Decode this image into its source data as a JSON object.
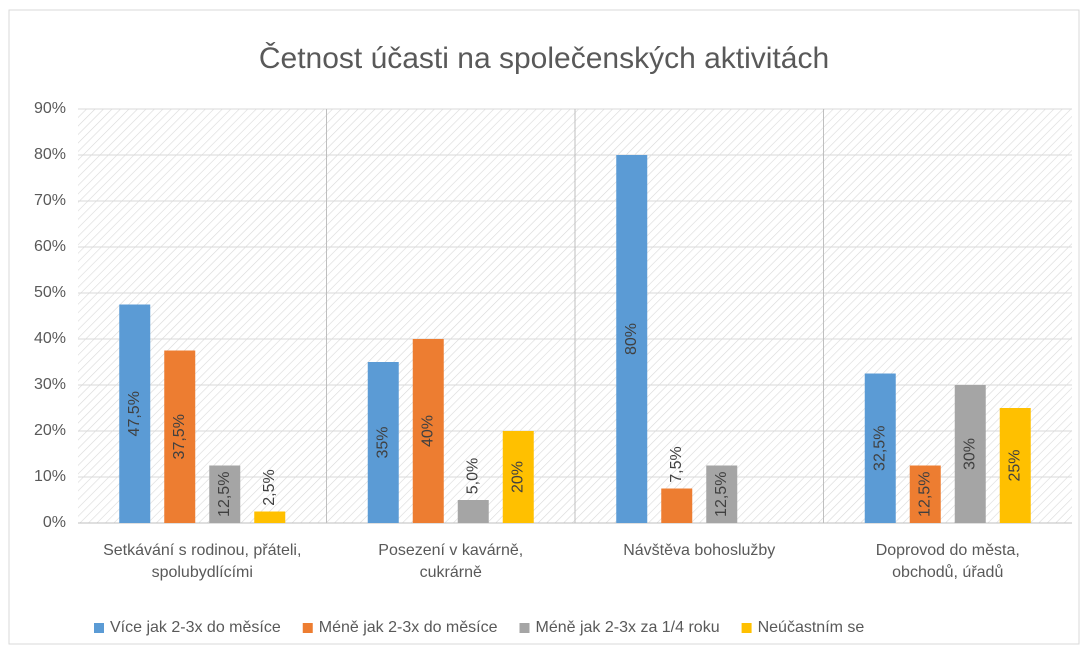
{
  "chart_data": {
    "type": "bar",
    "title": "Četnost účasti na společenských aktivitách",
    "categories": [
      "Setkávání s rodinou, přáteli,\nspolubydlícími",
      "Posezení v kavárně,\ncukrárně",
      "Návštěva bohoslužby",
      "Doprovod do města,\nobchodů, úřadů"
    ],
    "series": [
      {
        "name": "Více jak 2-3x do měsíce",
        "color": "#5b9bd5",
        "values": [
          47.5,
          35,
          80,
          32.5
        ],
        "value_labels": [
          "47,5%",
          "35%",
          "80%",
          "32,5%"
        ]
      },
      {
        "name": "Méně jak 2-3x do měsíce",
        "color": "#ed7d31",
        "values": [
          37.5,
          40,
          7.5,
          12.5
        ],
        "value_labels": [
          "37,5%",
          "40%",
          "7,5%",
          "12,5%"
        ]
      },
      {
        "name": "Méně jak 2-3x za 1/4 roku",
        "color": "#a5a5a5",
        "values": [
          12.5,
          5,
          12.5,
          30
        ],
        "value_labels": [
          "12,5%",
          "5,0%",
          "12,5%",
          "30%"
        ]
      },
      {
        "name": "Neúčastním se",
        "color": "#ffc000",
        "values": [
          2.5,
          20,
          null,
          25
        ],
        "value_labels": [
          "2,5%",
          "20%",
          null,
          "25%"
        ]
      }
    ],
    "ylim": [
      0,
      90
    ],
    "yticks": [
      {
        "value": 0,
        "label": "0%"
      },
      {
        "value": 10,
        "label": "10%"
      },
      {
        "value": 20,
        "label": "20%"
      },
      {
        "value": 30,
        "label": "30%"
      },
      {
        "value": 40,
        "label": "40%"
      },
      {
        "value": 50,
        "label": "50%"
      },
      {
        "value": 60,
        "label": "60%"
      },
      {
        "value": 70,
        "label": "70%"
      },
      {
        "value": 80,
        "label": "80%"
      },
      {
        "value": 90,
        "label": "90%"
      }
    ],
    "grid": true,
    "legend": "bottom"
  }
}
